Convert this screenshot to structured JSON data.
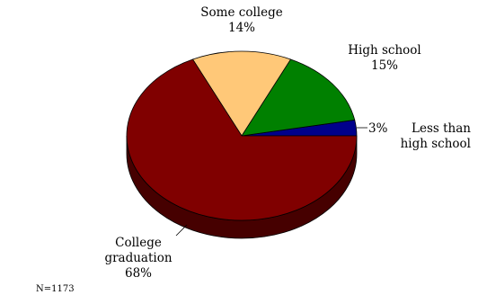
{
  "chart_data": {
    "type": "pie",
    "style": "3d",
    "title": "",
    "slices": [
      {
        "label": "Less than high school",
        "value": 3,
        "value_label": "3%",
        "color": "#00008B"
      },
      {
        "label": "High school",
        "value": 15,
        "value_label": "15%",
        "color": "#008000"
      },
      {
        "label": "Some college",
        "value": 14,
        "value_label": "14%",
        "color": "#FFC878"
      },
      {
        "label": "College graduation",
        "value": 68,
        "value_label": "68%",
        "color": "#800000"
      }
    ],
    "label_lines": {
      "less_than_hs": [
        "Less than",
        "high school"
      ],
      "high_school": "High school",
      "some_college": "Some college",
      "college_grad": [
        "College",
        "graduation"
      ]
    },
    "note": "N=1173"
  }
}
